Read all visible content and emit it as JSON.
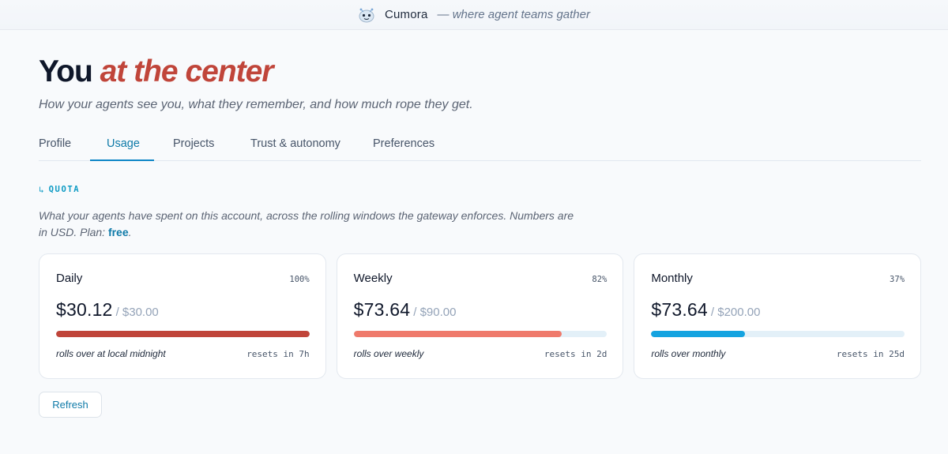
{
  "header": {
    "brand": "Cumora",
    "tagline": "— where agent teams gather"
  },
  "hero": {
    "title_plain": "You",
    "title_accent": "at the center",
    "subtitle": "How your agents see you, what they remember, and how much rope they get."
  },
  "tabs": [
    {
      "label": "Profile",
      "active": false
    },
    {
      "label": "Usage",
      "active": true
    },
    {
      "label": "Projects",
      "active": false
    },
    {
      "label": "Trust & autonomy",
      "active": false
    },
    {
      "label": "Preferences",
      "active": false
    }
  ],
  "quota": {
    "section_label": "QUOTA",
    "section_arrow": "↳",
    "description": "What your agents have spent on this account, across the rolling windows the gateway enforces. Numbers are in USD. Plan: ",
    "plan": "free",
    "plan_suffix": ".",
    "cards": [
      {
        "title": "Daily",
        "percent": "100%",
        "spent": "$30.12",
        "limit": "/ $30.00",
        "fill_fraction": 1.0,
        "fill_color": "#c0453a",
        "rolls": "rolls over at local midnight",
        "resets": "resets in 7h"
      },
      {
        "title": "Weekly",
        "percent": "82%",
        "spent": "$73.64",
        "limit": "/ $90.00",
        "fill_fraction": 0.82,
        "fill_color": "#ef7a6b",
        "rolls": "rolls over weekly",
        "resets": "resets in 2d"
      },
      {
        "title": "Monthly",
        "percent": "37%",
        "spent": "$73.64",
        "limit": "/ $200.00",
        "fill_fraction": 0.37,
        "fill_color": "#14a3e0",
        "rolls": "rolls over monthly",
        "resets": "resets in 25d"
      }
    ]
  },
  "actions": {
    "refresh_label": "Refresh"
  },
  "colors": {
    "accent": "#c0453a",
    "link": "#0e7aa8",
    "section": "#0e9bc4"
  },
  "icons": {
    "logo": "robot-face-icon"
  }
}
